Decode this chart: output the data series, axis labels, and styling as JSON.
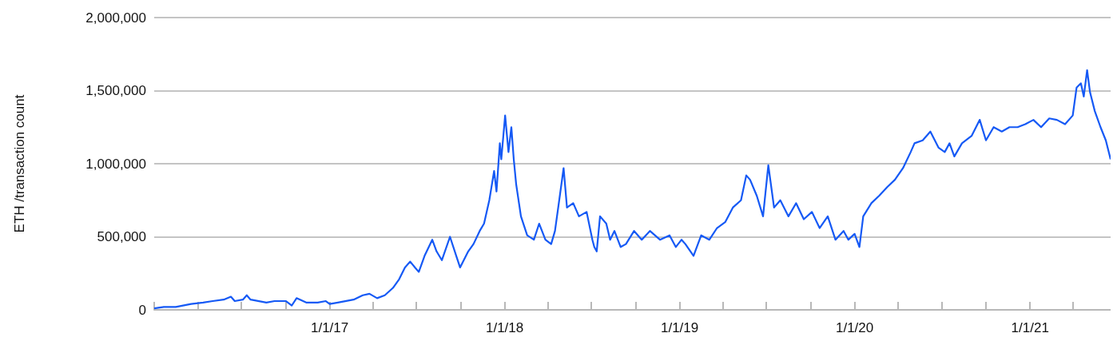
{
  "chart_data": {
    "type": "line",
    "ylabel": "ETH /transaction count",
    "color": "#1559f5",
    "x": [
      "2016-01-01",
      "2016-01-21",
      "2016-02-15",
      "2016-03-18",
      "2016-04-12",
      "2016-05-02",
      "2016-05-25",
      "2016-06-09",
      "2016-06-17",
      "2016-07-04",
      "2016-07-12",
      "2016-07-20",
      "2016-08-22",
      "2016-09-08",
      "2016-10-02",
      "2016-10-14",
      "2016-10-24",
      "2016-11-13",
      "2016-12-07",
      "2016-12-24",
      "2017-01-01",
      "2017-01-18",
      "2017-02-20",
      "2017-03-11",
      "2017-03-25",
      "2017-04-10",
      "2017-04-26",
      "2017-05-13",
      "2017-05-26",
      "2017-06-07",
      "2017-06-18",
      "2017-06-28",
      "2017-07-06",
      "2017-07-18",
      "2017-08-03",
      "2017-08-12",
      "2017-08-23",
      "2017-09-09",
      "2017-09-22",
      "2017-09-30",
      "2017-10-17",
      "2017-10-28",
      "2017-11-10",
      "2017-11-19",
      "2017-11-30",
      "2017-12-10",
      "2017-12-15",
      "2017-12-22",
      "2017-12-25",
      "2018-01-02",
      "2018-01-09",
      "2018-01-15",
      "2018-01-20",
      "2018-01-25",
      "2018-02-04",
      "2018-02-17",
      "2018-03-03",
      "2018-03-14",
      "2018-03-27",
      "2018-04-08",
      "2018-04-16",
      "2018-04-24",
      "2018-05-04",
      "2018-05-11",
      "2018-05-24",
      "2018-06-05",
      "2018-06-21",
      "2018-07-03",
      "2018-07-07",
      "2018-07-12",
      "2018-07-19",
      "2018-08-01",
      "2018-08-09",
      "2018-08-18",
      "2018-08-31",
      "2018-09-11",
      "2018-09-28",
      "2018-10-14",
      "2018-10-31",
      "2018-11-21",
      "2018-12-11",
      "2018-12-24",
      "2019-01-05",
      "2019-01-13",
      "2019-01-30",
      "2019-02-15",
      "2019-03-04",
      "2019-03-20",
      "2019-04-06",
      "2019-04-22",
      "2019-05-09",
      "2019-05-20",
      "2019-05-28",
      "2019-06-11",
      "2019-06-24",
      "2019-07-05",
      "2019-07-17",
      "2019-07-30",
      "2019-08-16",
      "2019-09-01",
      "2019-09-17",
      "2019-10-04",
      "2019-10-20",
      "2019-11-06",
      "2019-11-22",
      "2019-12-09",
      "2019-12-19",
      "2020-01-01",
      "2020-01-11",
      "2020-01-19",
      "2020-02-05",
      "2020-02-21",
      "2020-03-09",
      "2020-03-25",
      "2020-04-11",
      "2020-04-27",
      "2020-05-05",
      "2020-05-22",
      "2020-06-07",
      "2020-06-24",
      "2020-07-07",
      "2020-07-17",
      "2020-07-27",
      "2020-08-12",
      "2020-09-01",
      "2020-09-18",
      "2020-10-01",
      "2020-10-17",
      "2020-11-03",
      "2020-11-19",
      "2020-12-06",
      "2020-12-22",
      "2021-01-08",
      "2021-01-24",
      "2021-02-10",
      "2021-02-26",
      "2021-03-15",
      "2021-03-31",
      "2021-04-08",
      "2021-04-17",
      "2021-04-23",
      "2021-04-30",
      "2021-05-06",
      "2021-05-16",
      "2021-05-28",
      "2021-06-08",
      "2021-06-18"
    ],
    "values": [
      10000,
      20000,
      20000,
      40000,
      50000,
      60000,
      70000,
      90000,
      60000,
      70000,
      100000,
      70000,
      50000,
      60000,
      60000,
      30000,
      80000,
      50000,
      50000,
      60000,
      40000,
      50000,
      70000,
      100000,
      110000,
      80000,
      100000,
      150000,
      210000,
      290000,
      330000,
      290000,
      260000,
      370000,
      480000,
      400000,
      340000,
      500000,
      370000,
      290000,
      400000,
      450000,
      540000,
      590000,
      750000,
      950000,
      810000,
      1140000,
      1030000,
      1330000,
      1080000,
      1250000,
      1030000,
      860000,
      640000,
      510000,
      480000,
      590000,
      480000,
      450000,
      540000,
      730000,
      970000,
      700000,
      730000,
      640000,
      670000,
      480000,
      430000,
      400000,
      640000,
      590000,
      480000,
      540000,
      430000,
      450000,
      540000,
      480000,
      540000,
      480000,
      510000,
      430000,
      480000,
      450000,
      370000,
      510000,
      480000,
      560000,
      600000,
      700000,
      750000,
      920000,
      890000,
      780000,
      640000,
      990000,
      700000,
      750000,
      640000,
      730000,
      620000,
      670000,
      560000,
      640000,
      480000,
      540000,
      480000,
      520000,
      430000,
      640000,
      730000,
      780000,
      840000,
      890000,
      970000,
      1080000,
      1140000,
      1160000,
      1220000,
      1110000,
      1080000,
      1140000,
      1050000,
      1140000,
      1190000,
      1300000,
      1160000,
      1250000,
      1220000,
      1250000,
      1250000,
      1270000,
      1300000,
      1250000,
      1310000,
      1300000,
      1270000,
      1330000,
      1520000,
      1550000,
      1460000,
      1640000,
      1490000,
      1360000,
      1250000,
      1160000,
      1030000
    ],
    "xlim": [
      "2016-01-01",
      "2021-06-18"
    ],
    "xticks": [
      {
        "value": "2016-01-01",
        "label": null
      },
      {
        "value": "2016-04-01",
        "label": null
      },
      {
        "value": "2016-07-01",
        "label": null
      },
      {
        "value": "2016-10-01",
        "label": null
      },
      {
        "value": "2017-01-01",
        "label": "1/1/17"
      },
      {
        "value": "2017-04-01",
        "label": null
      },
      {
        "value": "2017-07-01",
        "label": null
      },
      {
        "value": "2017-10-01",
        "label": null
      },
      {
        "value": "2018-01-01",
        "label": "1/1/18"
      },
      {
        "value": "2018-04-01",
        "label": null
      },
      {
        "value": "2018-07-01",
        "label": null
      },
      {
        "value": "2018-10-01",
        "label": null
      },
      {
        "value": "2019-01-01",
        "label": "1/1/19"
      },
      {
        "value": "2019-04-01",
        "label": null
      },
      {
        "value": "2019-07-01",
        "label": null
      },
      {
        "value": "2019-10-01",
        "label": null
      },
      {
        "value": "2020-01-01",
        "label": "1/1/20"
      },
      {
        "value": "2020-04-01",
        "label": null
      },
      {
        "value": "2020-07-01",
        "label": null
      },
      {
        "value": "2020-10-01",
        "label": null
      },
      {
        "value": "2021-01-01",
        "label": "1/1/21"
      },
      {
        "value": "2021-04-01",
        "label": null
      }
    ],
    "ylim": [
      0,
      2000000
    ],
    "yticks": [
      0,
      {
        "value": 500000,
        "label": "500,000"
      },
      {
        "value": 1000000,
        "label": "1,000,000"
      },
      {
        "value": 1500000,
        "label": "1,500,000"
      },
      {
        "value": 2000000,
        "label": "2,000,000"
      }
    ],
    "grid": "y",
    "marker": "none",
    "line_style": "solid"
  }
}
